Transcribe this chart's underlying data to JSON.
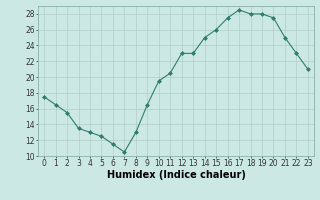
{
  "x": [
    0,
    1,
    2,
    3,
    4,
    5,
    6,
    7,
    8,
    9,
    10,
    11,
    12,
    13,
    14,
    15,
    16,
    17,
    18,
    19,
    20,
    21,
    22,
    23
  ],
  "y": [
    17.5,
    16.5,
    15.5,
    13.5,
    13.0,
    12.5,
    11.5,
    10.5,
    13.0,
    16.5,
    19.5,
    20.5,
    23.0,
    23.0,
    25.0,
    26.0,
    27.5,
    28.5,
    28.0,
    28.0,
    27.5,
    25.0,
    23.0,
    21.0
  ],
  "xlabel": "Humidex (Indice chaleur)",
  "ylim": [
    10,
    29
  ],
  "yticks": [
    10,
    12,
    14,
    16,
    18,
    20,
    22,
    24,
    26,
    28
  ],
  "xticks": [
    0,
    1,
    2,
    3,
    4,
    5,
    6,
    7,
    8,
    9,
    10,
    11,
    12,
    13,
    14,
    15,
    16,
    17,
    18,
    19,
    20,
    21,
    22,
    23
  ],
  "line_color": "#2e7d6e",
  "marker": "D",
  "marker_size": 2,
  "bg_color": "#cce8e4",
  "grid_color": "#b0cec8",
  "tick_label_fontsize": 5.5,
  "xlabel_fontsize": 7.0
}
